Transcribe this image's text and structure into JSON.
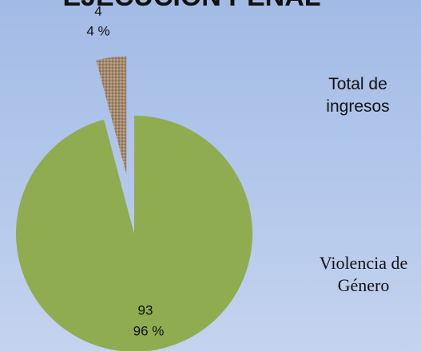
{
  "chart_data": {
    "type": "pie",
    "title": "EJECUCIÓN PENAL",
    "values": [
      93,
      4
    ],
    "percents": [
      96,
      4
    ],
    "percent_labels": [
      "96 %",
      "4 %"
    ],
    "colors": [
      "#8fac50",
      "#a48a6c"
    ],
    "legend_labels": [
      "Total de ingresos",
      "Violencia de Género"
    ]
  }
}
